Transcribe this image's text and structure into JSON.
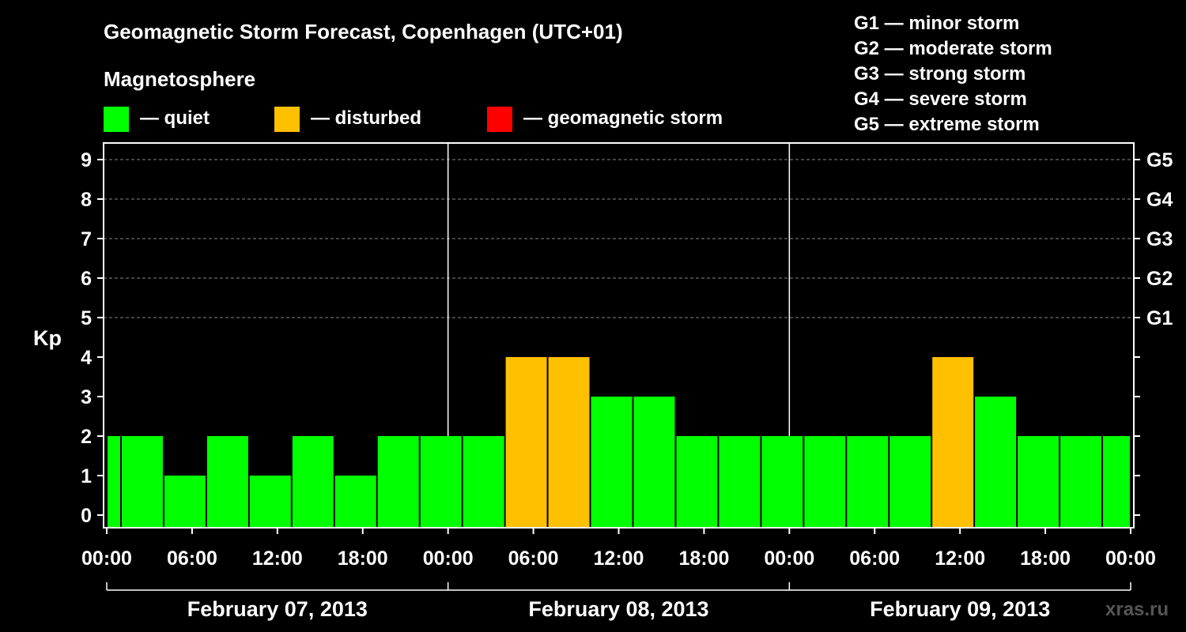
{
  "header": {
    "title": "Geomagnetic Storm Forecast, Copenhagen (UTC+01)",
    "magnetosphere_label": "Magnetosphere"
  },
  "legend": [
    {
      "label": "— quiet",
      "color": "#00ff00"
    },
    {
      "label": "— disturbed",
      "color": "#ffc000"
    },
    {
      "label": "— geomagnetic storm",
      "color": "#ff0000"
    }
  ],
  "storm_scale": [
    "G1 — minor storm",
    "G2 — moderate storm",
    "G3 — strong storm",
    "G4 — severe storm",
    "G5 — extreme storm"
  ],
  "watermark": "xras.ru",
  "colors": {
    "quiet": "#00ff00",
    "disturbed": "#ffc000",
    "storm": "#ff0000",
    "grid": "#888888",
    "frame": "#ffffff",
    "background": "#000000"
  },
  "chart_data": {
    "type": "bar",
    "title": "Geomagnetic Storm Forecast, Copenhagen (UTC+01)",
    "ylabel": "Kp",
    "xlabel": "",
    "ylim": [
      0,
      9
    ],
    "yticks": [
      "0",
      "1",
      "2",
      "3",
      "4",
      "5",
      "6",
      "7",
      "8",
      "9"
    ],
    "right_axis_labels": [
      {
        "kp": 5,
        "label": "G1"
      },
      {
        "kp": 6,
        "label": "G2"
      },
      {
        "kp": 7,
        "label": "G3"
      },
      {
        "kp": 8,
        "label": "G4"
      },
      {
        "kp": 9,
        "label": "G5"
      }
    ],
    "xlim_hours": [
      0,
      72
    ],
    "xtick_hours": [
      0,
      6,
      12,
      18,
      24,
      30,
      36,
      42,
      48,
      54,
      60,
      66,
      72
    ],
    "xticks": [
      "00:00",
      "06:00",
      "12:00",
      "18:00",
      "00:00",
      "06:00",
      "12:00",
      "18:00",
      "00:00",
      "06:00",
      "12:00",
      "18:00",
      "00:00"
    ],
    "day_boundaries_hours": [
      24,
      48
    ],
    "dates": [
      "February 07, 2013",
      "February 08, 2013",
      "February 09, 2013"
    ],
    "bars": [
      {
        "start": 0,
        "end": 1,
        "kp": 2
      },
      {
        "start": 1,
        "end": 4,
        "kp": 2
      },
      {
        "start": 4,
        "end": 7,
        "kp": 1
      },
      {
        "start": 7,
        "end": 10,
        "kp": 2
      },
      {
        "start": 10,
        "end": 13,
        "kp": 1
      },
      {
        "start": 13,
        "end": 16,
        "kp": 2
      },
      {
        "start": 16,
        "end": 19,
        "kp": 1
      },
      {
        "start": 19,
        "end": 22,
        "kp": 2
      },
      {
        "start": 22,
        "end": 25,
        "kp": 2
      },
      {
        "start": 25,
        "end": 28,
        "kp": 2
      },
      {
        "start": 28,
        "end": 31,
        "kp": 4
      },
      {
        "start": 31,
        "end": 34,
        "kp": 4
      },
      {
        "start": 34,
        "end": 37,
        "kp": 3
      },
      {
        "start": 37,
        "end": 40,
        "kp": 3
      },
      {
        "start": 40,
        "end": 43,
        "kp": 2
      },
      {
        "start": 43,
        "end": 46,
        "kp": 2
      },
      {
        "start": 46,
        "end": 49,
        "kp": 2
      },
      {
        "start": 49,
        "end": 52,
        "kp": 2
      },
      {
        "start": 52,
        "end": 55,
        "kp": 2
      },
      {
        "start": 55,
        "end": 58,
        "kp": 2
      },
      {
        "start": 58,
        "end": 61,
        "kp": 4
      },
      {
        "start": 61,
        "end": 64,
        "kp": 3
      },
      {
        "start": 64,
        "end": 67,
        "kp": 2
      },
      {
        "start": 67,
        "end": 70,
        "kp": 2
      },
      {
        "start": 70,
        "end": 72,
        "kp": 2
      }
    ]
  }
}
